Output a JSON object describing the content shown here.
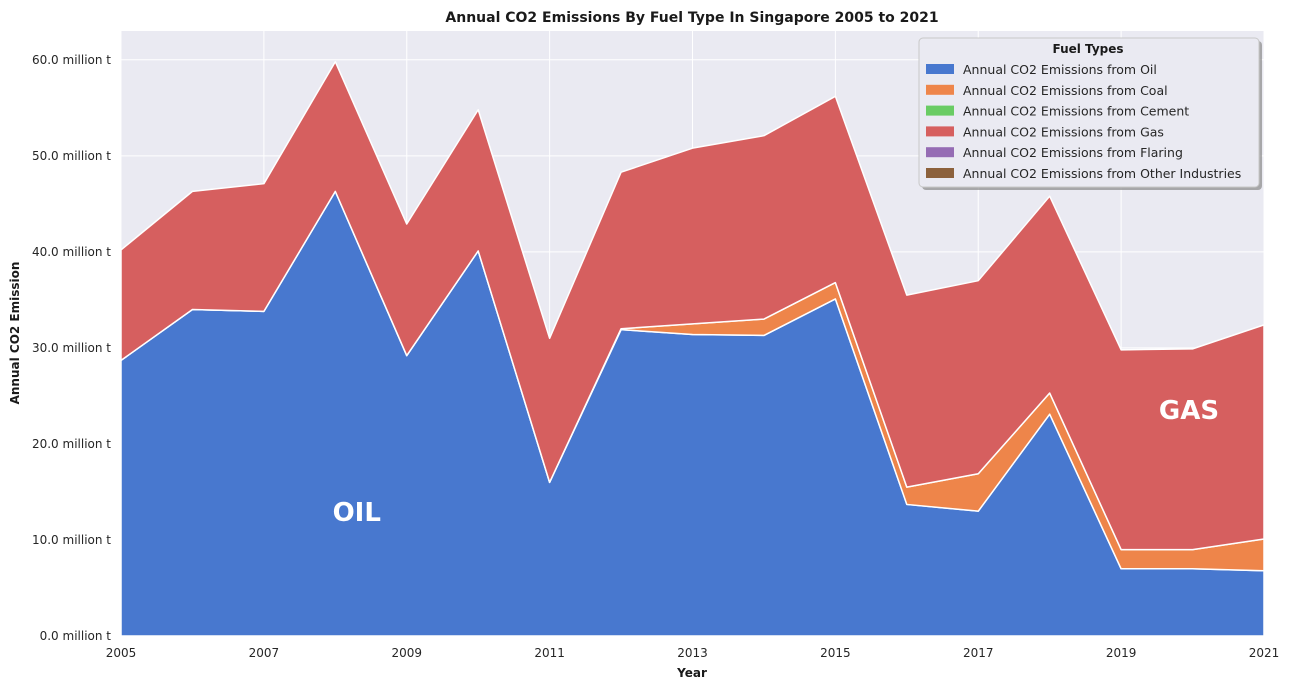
{
  "chart_data": {
    "type": "area",
    "stacked": true,
    "title": "Annual CO2 Emissions By Fuel Type In Singapore 2005 to 2021",
    "xlabel": "Year",
    "ylabel": "Annual CO2 Emission",
    "x": [
      2005,
      2006,
      2007,
      2008,
      2009,
      2010,
      2011,
      2012,
      2013,
      2014,
      2015,
      2016,
      2017,
      2018,
      2019,
      2020,
      2021
    ],
    "xlim": [
      2005,
      2021
    ],
    "xticks": [
      2005,
      2007,
      2009,
      2011,
      2013,
      2015,
      2017,
      2019,
      2021
    ],
    "xtick_labels": [
      "2005",
      "2007",
      "2009",
      "2011",
      "2013",
      "2015",
      "2017",
      "2019",
      "2021"
    ],
    "ylim": [
      0,
      63
    ],
    "yticks": [
      0,
      10,
      20,
      30,
      40,
      50,
      60
    ],
    "ytick_labels": [
      "0.0 million t",
      "10.0 million t",
      "20.0 million t",
      "30.0 million t",
      "40.0 million t",
      "50.0 million t",
      "60.0 million t"
    ],
    "y_unit": "million t",
    "grid": true,
    "legend": {
      "title": "Fuel Types",
      "position": "top-right"
    },
    "series": [
      {
        "name": "Annual CO2 Emissions from Oil",
        "color": "#4878cf",
        "values": [
          28.7,
          34.0,
          33.8,
          46.3,
          29.2,
          40.1,
          16.0,
          31.9,
          31.4,
          31.3,
          35.1,
          13.7,
          13.0,
          23.1,
          7.0,
          7.0,
          6.8
        ]
      },
      {
        "name": "Annual CO2 Emissions from Coal",
        "color": "#ee854a",
        "values": [
          0,
          0,
          0,
          0,
          0,
          0,
          0,
          0.1,
          1.1,
          1.7,
          1.7,
          1.8,
          3.9,
          2.2,
          2.0,
          2.0,
          3.3
        ]
      },
      {
        "name": "Annual CO2 Emissions from Cement",
        "color": "#6acc64",
        "values": [
          0,
          0,
          0,
          0,
          0,
          0,
          0,
          0,
          0,
          0,
          0,
          0,
          0,
          0,
          0,
          0,
          0
        ]
      },
      {
        "name": "Annual CO2 Emissions from Gas",
        "color": "#d65f5f",
        "values": [
          11.5,
          12.3,
          13.3,
          13.5,
          13.7,
          14.7,
          15.0,
          16.3,
          18.3,
          19.1,
          19.4,
          20.0,
          20.1,
          20.5,
          20.8,
          20.9,
          22.3
        ]
      },
      {
        "name": "Annual CO2 Emissions from Flaring",
        "color": "#956cb4",
        "values": [
          0,
          0,
          0,
          0,
          0,
          0,
          0,
          0,
          0,
          0,
          0,
          0,
          0,
          0,
          0,
          0,
          0
        ]
      },
      {
        "name": "Annual CO2 Emissions from Other Industries",
        "color": "#8c613c",
        "values": [
          0,
          0,
          0,
          0,
          0,
          0,
          0,
          0,
          0,
          0,
          0,
          0,
          0,
          0,
          0,
          0,
          0
        ]
      }
    ],
    "annotations": [
      {
        "text": "OIL",
        "x": 2008.3,
        "y": 12
      },
      {
        "text": "GAS",
        "x": 2019.95,
        "y": 22.6
      }
    ]
  }
}
